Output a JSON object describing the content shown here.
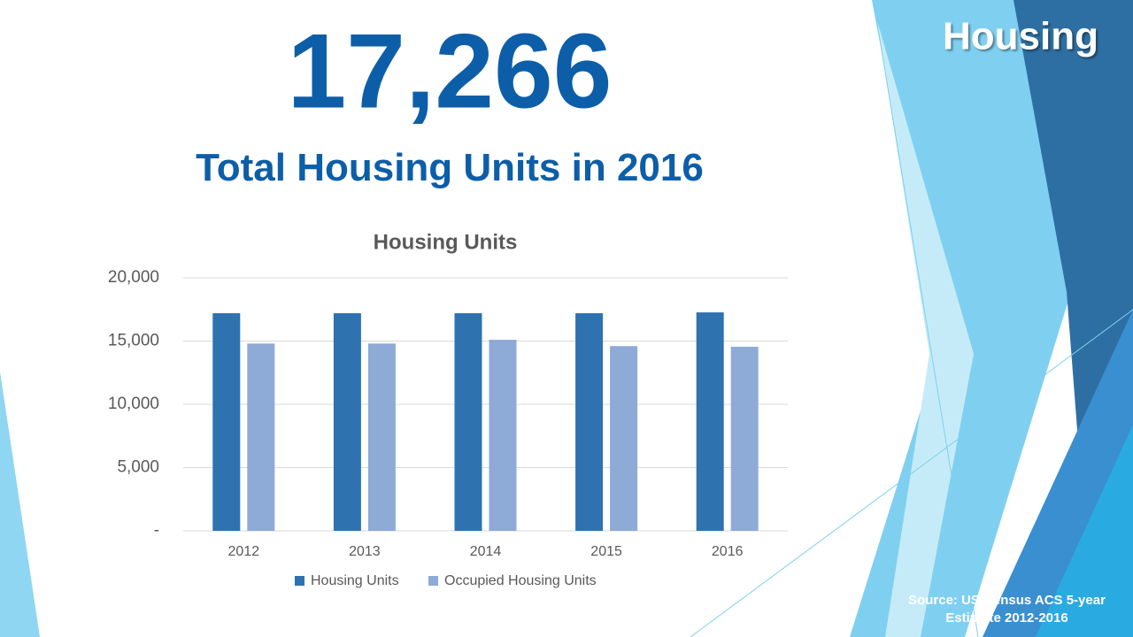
{
  "section_title": "Housing",
  "headline": "17,266",
  "headline_caption": "Total Housing Units in 2016",
  "source": "Source: US Census ACS 5-year Estimate 2012-2016",
  "chart_data": {
    "type": "bar",
    "title": "Housing Units",
    "categories": [
      "2012",
      "2013",
      "2014",
      "2015",
      "2016"
    ],
    "series": [
      {
        "name": "Housing Units",
        "color": "#2e72b0",
        "values": [
          17200,
          17200,
          17200,
          17200,
          17266
        ]
      },
      {
        "name": "Occupied Housing Units",
        "color": "#8eaad6",
        "values": [
          14800,
          14800,
          15100,
          14600,
          14550
        ]
      }
    ],
    "ylim": [
      0,
      20000
    ],
    "yticks": [
      {
        "value": 0,
        "label": "-"
      },
      {
        "value": 5000,
        "label": "5,000"
      },
      {
        "value": 10000,
        "label": "10,000"
      },
      {
        "value": 15000,
        "label": "15,000"
      },
      {
        "value": 20000,
        "label": "20,000"
      }
    ],
    "grid": true,
    "legend": "bottom"
  }
}
